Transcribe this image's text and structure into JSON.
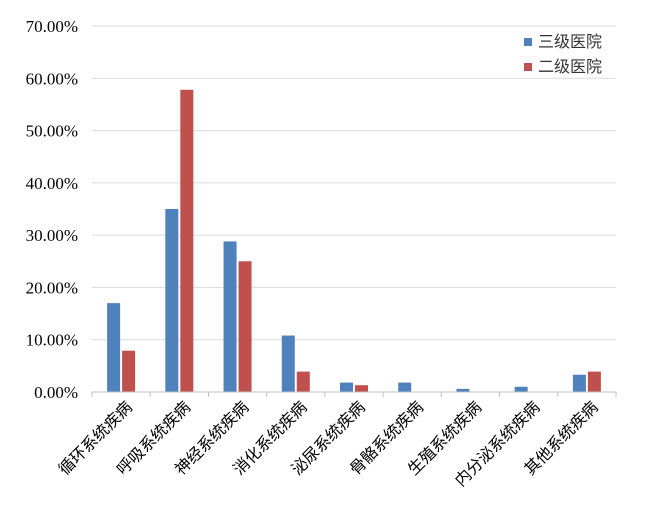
{
  "chart_data": {
    "type": "bar",
    "categories": [
      "循环系统疾病",
      "呼吸系统疾病",
      "神经系统疾病",
      "消化系统疾病",
      "泌尿系统疾病",
      "骨骼系统疾病",
      "生殖系统疾病",
      "内分泌系统疾病",
      "其他系统疾病"
    ],
    "series": [
      {
        "name": "三级医院",
        "color": "#4f81bd",
        "values": [
          17.0,
          35.0,
          28.8,
          10.8,
          1.8,
          1.8,
          0.6,
          1.0,
          3.3
        ]
      },
      {
        "name": "二级医院",
        "color": "#c0504d",
        "values": [
          7.9,
          57.8,
          25.0,
          3.9,
          1.3,
          0,
          0,
          0,
          3.9
        ]
      }
    ],
    "ylim": [
      0,
      70
    ],
    "yticks": [
      0,
      10,
      20,
      30,
      40,
      50,
      60,
      70
    ],
    "ytick_labels": [
      "0.00%",
      "10.00%",
      "20.00%",
      "30.00%",
      "40.00%",
      "50.00%",
      "60.00%",
      "70.00%"
    ],
    "grid": true,
    "legend_position": "top-right"
  }
}
